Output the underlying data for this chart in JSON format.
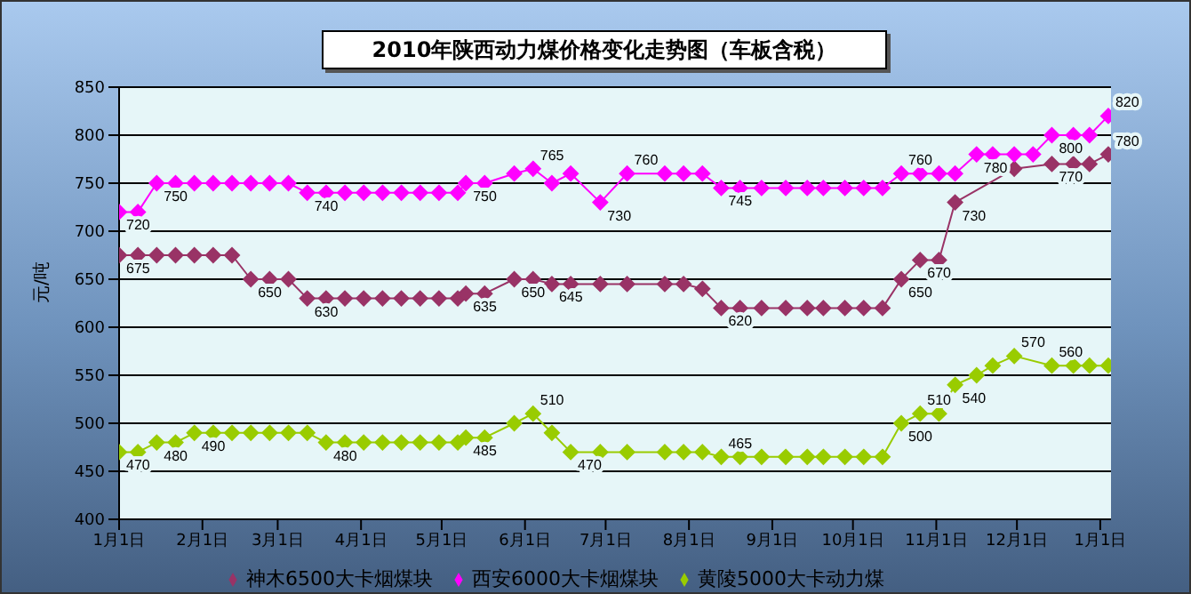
{
  "chart_data": {
    "type": "line",
    "title": "2010年陕西动力煤价格变化走势图（车板含税）",
    "ylabel": "元/吨",
    "xlim": [
      "2010-01-01",
      "2011-01-05"
    ],
    "xticks": [
      {
        "value": "2010-01-01",
        "label": "1月1日"
      },
      {
        "value": "2010-02-01",
        "label": "2月1日"
      },
      {
        "value": "2010-03-01",
        "label": "3月1日"
      },
      {
        "value": "2010-04-01",
        "label": "4月1日"
      },
      {
        "value": "2010-05-01",
        "label": "5月1日"
      },
      {
        "value": "2010-06-01",
        "label": "6月1日"
      },
      {
        "value": "2010-07-01",
        "label": "7月1日"
      },
      {
        "value": "2010-08-01",
        "label": "8月1日"
      },
      {
        "value": "2010-09-01",
        "label": "9月1日"
      },
      {
        "value": "2010-10-01",
        "label": "10月1日"
      },
      {
        "value": "2010-11-01",
        "label": "11月1日"
      },
      {
        "value": "2010-12-01",
        "label": "12月1日"
      },
      {
        "value": "2011-01-01",
        "label": "1月1日"
      }
    ],
    "ylim": [
      400,
      850
    ],
    "yticks": [
      400,
      450,
      500,
      550,
      600,
      650,
      700,
      750,
      800,
      850
    ],
    "grid": "y",
    "legend": "bottom",
    "marker": "diamond",
    "line_style": "solid",
    "series": [
      {
        "name": "神木6500大卡烟煤块",
        "color": "#993366",
        "x": [
          "2010-01-01",
          "2010-01-08",
          "2010-01-15",
          "2010-01-22",
          "2010-01-29",
          "2010-02-05",
          "2010-02-12",
          "2010-02-19",
          "2010-02-26",
          "2010-03-05",
          "2010-03-12",
          "2010-03-19",
          "2010-03-26",
          "2010-04-02",
          "2010-04-09",
          "2010-04-16",
          "2010-04-23",
          "2010-04-30",
          "2010-05-07",
          "2010-05-10",
          "2010-05-17",
          "2010-05-28",
          "2010-06-04",
          "2010-06-11",
          "2010-06-18",
          "2010-06-29",
          "2010-07-09",
          "2010-07-23",
          "2010-07-30",
          "2010-08-06",
          "2010-08-13",
          "2010-08-20",
          "2010-08-28",
          "2010-09-06",
          "2010-09-14",
          "2010-09-20",
          "2010-09-28",
          "2010-10-05",
          "2010-10-12",
          "2010-10-19",
          "2010-10-26",
          "2010-11-02",
          "2010-11-08",
          "2010-11-30",
          "2010-12-14",
          "2010-12-22",
          "2010-12-28",
          "2011-01-04"
        ],
        "values": [
          675,
          675,
          675,
          675,
          675,
          675,
          675,
          650,
          650,
          650,
          630,
          630,
          630,
          630,
          630,
          630,
          630,
          630,
          630,
          635,
          635,
          650,
          650,
          645,
          645,
          645,
          645,
          645,
          645,
          640,
          620,
          620,
          620,
          620,
          620,
          620,
          620,
          620,
          620,
          650,
          670,
          670,
          730,
          765,
          770,
          770,
          770,
          780
        ],
        "value_labels": [
          "675",
          null,
          null,
          null,
          null,
          null,
          null,
          "650",
          null,
          null,
          "630",
          null,
          null,
          null,
          null,
          null,
          null,
          null,
          null,
          "635",
          null,
          "650",
          null,
          "645",
          null,
          null,
          null,
          null,
          null,
          null,
          "620",
          null,
          null,
          null,
          null,
          null,
          null,
          null,
          null,
          "650",
          "670",
          null,
          "730",
          null,
          "770",
          null,
          null,
          "780"
        ]
      },
      {
        "name": "西安6000大卡烟煤块",
        "color": "#ff00ff",
        "x": [
          "2010-01-01",
          "2010-01-08",
          "2010-01-15",
          "2010-01-22",
          "2010-01-29",
          "2010-02-05",
          "2010-02-12",
          "2010-02-19",
          "2010-02-26",
          "2010-03-05",
          "2010-03-12",
          "2010-03-19",
          "2010-03-26",
          "2010-04-02",
          "2010-04-09",
          "2010-04-16",
          "2010-04-23",
          "2010-04-30",
          "2010-05-07",
          "2010-05-10",
          "2010-05-17",
          "2010-05-28",
          "2010-06-04",
          "2010-06-11",
          "2010-06-18",
          "2010-06-29",
          "2010-07-09",
          "2010-07-23",
          "2010-07-30",
          "2010-08-06",
          "2010-08-13",
          "2010-08-20",
          "2010-08-28",
          "2010-09-06",
          "2010-09-14",
          "2010-09-20",
          "2010-09-28",
          "2010-10-05",
          "2010-10-12",
          "2010-10-19",
          "2010-10-26",
          "2010-11-02",
          "2010-11-08",
          "2010-11-16",
          "2010-11-22",
          "2010-11-30",
          "2010-12-07",
          "2010-12-14",
          "2010-12-22",
          "2010-12-28",
          "2011-01-04"
        ],
        "values": [
          720,
          720,
          750,
          750,
          750,
          750,
          750,
          750,
          750,
          750,
          740,
          740,
          740,
          740,
          740,
          740,
          740,
          740,
          740,
          750,
          750,
          760,
          765,
          750,
          760,
          730,
          760,
          760,
          760,
          760,
          745,
          745,
          745,
          745,
          745,
          745,
          745,
          745,
          745,
          760,
          760,
          760,
          760,
          780,
          780,
          780,
          780,
          800,
          800,
          800,
          820
        ],
        "value_labels": [
          "720",
          null,
          "750",
          null,
          null,
          null,
          null,
          null,
          null,
          null,
          "740",
          null,
          null,
          null,
          null,
          null,
          null,
          null,
          null,
          "750",
          null,
          null,
          "765",
          null,
          null,
          "730",
          "760",
          null,
          null,
          null,
          "745",
          null,
          null,
          null,
          null,
          null,
          null,
          null,
          null,
          "760",
          null,
          null,
          null,
          "780",
          null,
          null,
          null,
          "800",
          null,
          null,
          "820"
        ]
      },
      {
        "name": "黄陵5000大卡动力煤",
        "color": "#99cc00",
        "x": [
          "2010-01-01",
          "2010-01-08",
          "2010-01-15",
          "2010-01-22",
          "2010-01-29",
          "2010-02-05",
          "2010-02-12",
          "2010-02-19",
          "2010-02-26",
          "2010-03-05",
          "2010-03-12",
          "2010-03-19",
          "2010-03-26",
          "2010-04-02",
          "2010-04-09",
          "2010-04-16",
          "2010-04-23",
          "2010-04-30",
          "2010-05-07",
          "2010-05-10",
          "2010-05-17",
          "2010-05-28",
          "2010-06-04",
          "2010-06-11",
          "2010-06-18",
          "2010-06-29",
          "2010-07-09",
          "2010-07-23",
          "2010-07-30",
          "2010-08-06",
          "2010-08-13",
          "2010-08-20",
          "2010-08-28",
          "2010-09-06",
          "2010-09-14",
          "2010-09-20",
          "2010-09-28",
          "2010-10-05",
          "2010-10-12",
          "2010-10-19",
          "2010-10-26",
          "2010-11-02",
          "2010-11-08",
          "2010-11-16",
          "2010-11-22",
          "2010-11-30",
          "2010-12-14",
          "2010-12-22",
          "2010-12-28",
          "2011-01-04"
        ],
        "values": [
          470,
          470,
          480,
          480,
          490,
          490,
          490,
          490,
          490,
          490,
          490,
          480,
          480,
          480,
          480,
          480,
          480,
          480,
          480,
          485,
          485,
          500,
          510,
          490,
          470,
          470,
          470,
          470,
          470,
          470,
          465,
          465,
          465,
          465,
          465,
          465,
          465,
          465,
          465,
          500,
          510,
          510,
          540,
          550,
          560,
          570,
          560,
          560,
          560,
          560
        ],
        "value_labels": [
          "470",
          null,
          "480",
          null,
          "490",
          null,
          null,
          null,
          null,
          null,
          null,
          "480",
          null,
          null,
          null,
          null,
          null,
          null,
          null,
          "485",
          null,
          null,
          "510",
          null,
          "470",
          null,
          null,
          null,
          null,
          null,
          "465",
          null,
          null,
          null,
          null,
          null,
          null,
          null,
          null,
          "500",
          "510",
          null,
          "540",
          null,
          null,
          "570",
          "560",
          null,
          null,
          null
        ]
      }
    ]
  }
}
